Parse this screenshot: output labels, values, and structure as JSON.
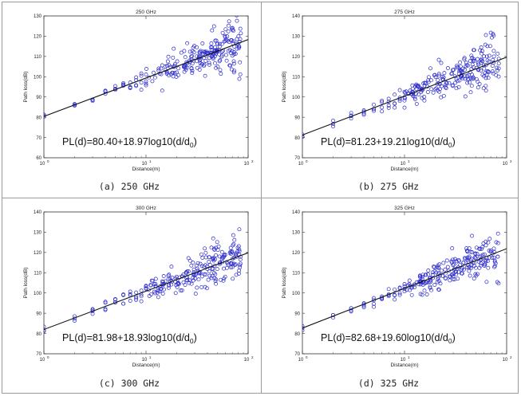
{
  "chart_data": [
    {
      "type": "scatter",
      "title": "250 GHz",
      "caption": "(a) 250 GHz",
      "xlabel": "Distance(m)",
      "ylabel": "Path loss(dB)",
      "xscale": "log",
      "xlim": [
        1,
        100
      ],
      "ylim": [
        60,
        130
      ],
      "yticks": [
        60,
        70,
        80,
        90,
        100,
        110,
        120,
        130
      ],
      "xtick_base": [
        "10",
        "10",
        "10"
      ],
      "xtick_exp": [
        "0",
        "1",
        "2"
      ],
      "fit": {
        "intercept": 80.4,
        "slope": 18.97
      },
      "equation": {
        "main": "PL(d)=80.40+18.97log10(d/d",
        "sub": "0",
        "close": ")"
      },
      "marker_color": "#2a2acc",
      "seed": 11
    },
    {
      "type": "scatter",
      "title": "275 GHz",
      "caption": "(b) 275 GHz",
      "xlabel": "Distance(m)",
      "ylabel": "Path loss(dB)",
      "xscale": "log",
      "xlim": [
        1,
        100
      ],
      "ylim": [
        70,
        140
      ],
      "yticks": [
        70,
        80,
        90,
        100,
        110,
        120,
        130,
        140
      ],
      "xtick_base": [
        "10",
        "10",
        "10"
      ],
      "xtick_exp": [
        "0",
        "1",
        "2"
      ],
      "fit": {
        "intercept": 81.23,
        "slope": 19.21
      },
      "equation": {
        "main": "PL(d)=81.23+19.21log10(d/d",
        "sub": "0",
        "close": ")"
      },
      "marker_color": "#2a2acc",
      "seed": 23
    },
    {
      "type": "scatter",
      "title": "300 GHz",
      "caption": "(c) 300 GHz",
      "xlabel": "Distance(m)",
      "ylabel": "Path loss(dB)",
      "xscale": "log",
      "xlim": [
        1,
        100
      ],
      "ylim": [
        70,
        140
      ],
      "yticks": [
        70,
        80,
        90,
        100,
        110,
        120,
        130,
        140
      ],
      "xtick_base": [
        "10",
        "10",
        "10"
      ],
      "xtick_exp": [
        "0",
        "1",
        "2"
      ],
      "fit": {
        "intercept": 81.98,
        "slope": 18.93
      },
      "equation": {
        "main": "PL(d)=81.98+18.93log10(d/d",
        "sub": "0",
        "close": ")"
      },
      "marker_color": "#2a2acc",
      "seed": 37
    },
    {
      "type": "scatter",
      "title": "325 GHz",
      "caption": "(d) 325 GHz",
      "xlabel": "Distance(m)",
      "ylabel": "Path loss(dB)",
      "xscale": "log",
      "xlim": [
        1,
        100
      ],
      "ylim": [
        70,
        140
      ],
      "yticks": [
        70,
        80,
        90,
        100,
        110,
        120,
        130,
        140
      ],
      "xtick_base": [
        "10",
        "10",
        "10"
      ],
      "xtick_exp": [
        "0",
        "1",
        "2"
      ],
      "fit": {
        "intercept": 82.68,
        "slope": 19.6
      },
      "equation": {
        "main": "PL(d)=82.68+19.60log10(d/d",
        "sub": "0",
        "close": ")"
      },
      "marker_color": "#2a2acc",
      "seed": 53
    }
  ]
}
